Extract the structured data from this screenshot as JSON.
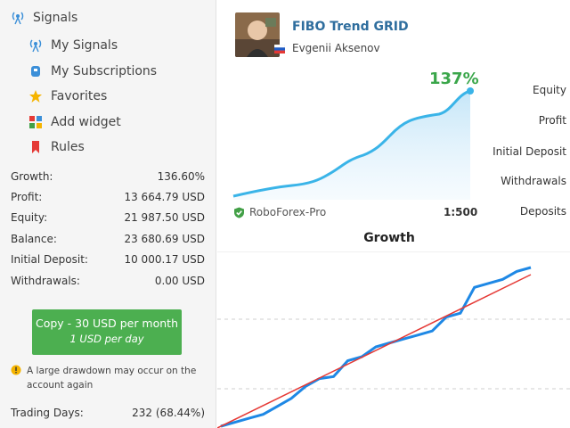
{
  "nav": {
    "title": "Signals",
    "items": [
      {
        "label": "My Signals",
        "icon": "antenna-icon"
      },
      {
        "label": "My Subscriptions",
        "icon": "subscription-icon"
      },
      {
        "label": "Favorites",
        "icon": "star-icon"
      },
      {
        "label": "Add widget",
        "icon": "widget-icon"
      },
      {
        "label": "Rules",
        "icon": "bookmark-icon"
      }
    ]
  },
  "stats": [
    {
      "label": "Growth:",
      "value": "136.60%"
    },
    {
      "label": "Profit:",
      "value": "13 664.79 USD"
    },
    {
      "label": "Equity:",
      "value": "21 987.50 USD"
    },
    {
      "label": "Balance:",
      "value": "23 680.69 USD"
    },
    {
      "label": "Initial Deposit:",
      "value": "10 000.17 USD"
    },
    {
      "label": "Withdrawals:",
      "value": "0.00 USD"
    }
  ],
  "copy": {
    "main": "Copy - 30 USD per month",
    "sub": "1 USD per day"
  },
  "warning": "A large drawdown may occur on the account again",
  "trading_days": {
    "label": "Trading Days:",
    "value": "232 (68.44%)"
  },
  "signal": {
    "name": "FIBO Trend GRID",
    "author": "Evgenii Aksenov",
    "growth": "137%",
    "broker": "RoboForex-Pro",
    "leverage": "1:500"
  },
  "right_labels": [
    "Equity",
    "Profit",
    "Initial Deposit",
    "Withdrawals",
    "Deposits"
  ],
  "chart_data": {
    "type": "line",
    "title": "Growth",
    "series": [
      {
        "values": [
          0,
          2,
          4,
          6,
          10,
          14,
          20,
          24,
          25,
          33,
          35,
          40,
          42,
          44,
          46,
          48,
          55,
          57,
          70,
          72,
          74,
          78,
          80
        ]
      }
    ],
    "trend": true,
    "grid": true
  },
  "colors": {
    "accent": "#4caf50",
    "link": "#2f6e9e",
    "line": "#1e88e5",
    "trend": "#e53935"
  }
}
